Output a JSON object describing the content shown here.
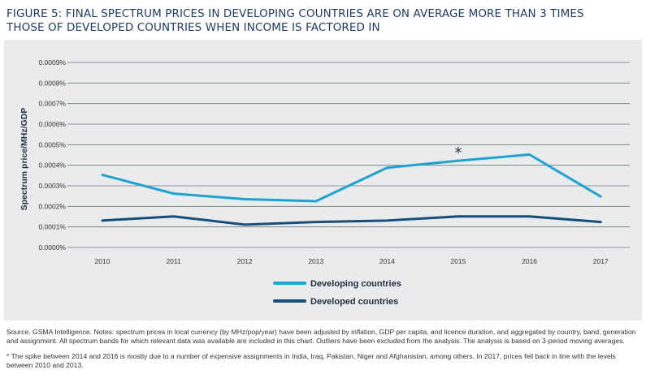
{
  "figure": {
    "title_line1": "FIGURE 5: FINAL SPECTRUM PRICES IN DEVELOPING COUNTRIES ARE ON AVERAGE MORE THAN 3 TIMES",
    "title_line2": "THOSE OF DEVELOPED COUNTRIES WHEN INCOME IS FACTORED IN",
    "source_note": "Source. GSMA Intelligence. Notes: spectrum prices in local currency (by MHz/pop/year) have been adjusted by inflation, GDP per capita, and licence duration, and aggregated by country, band, generation and assignment. All spectrum bands for which relevant data was available are included in this chart. Outliers have been excluded from the analysis. The analysis is based on 3-period moving averages.",
    "footnote": "* The spike between 2014 and 2016 is mostly due to a number of expensive assignments in India, Iraq, Pakistan, Niger and Afghanistan, among others. In 2017, prices fell back in line with the levels between 2010 and 2013."
  },
  "chart_data": {
    "type": "line",
    "ylabel": "Spectrum price/MHz/GDP",
    "xlabel": "",
    "categories": [
      "2010",
      "2011",
      "2012",
      "2013",
      "2014",
      "2015",
      "2016",
      "2017"
    ],
    "y_ticks": [
      "0.0000%",
      "0.0001%",
      "0.0002%",
      "0.0003%",
      "0.0004%",
      "0.0005%",
      "0.0006%",
      "0.0007%",
      "0.0008%",
      "0.0009%"
    ],
    "ylim": [
      0,
      0.0009
    ],
    "grid": true,
    "legend_position": "bottom-center",
    "annotation": {
      "text": "*",
      "category": "2015"
    },
    "series": [
      {
        "name": "Developing countries",
        "color": "#1fa3cf",
        "values": [
          0.000353,
          0.000262,
          0.000235,
          0.000225,
          0.000388,
          0.000422,
          0.000452,
          0.000248
        ]
      },
      {
        "name": "Developed countries",
        "color": "#174f7a",
        "values": [
          0.000131,
          0.000151,
          0.000111,
          0.000124,
          0.000131,
          0.000151,
          0.000151,
          0.000124
        ]
      }
    ]
  }
}
